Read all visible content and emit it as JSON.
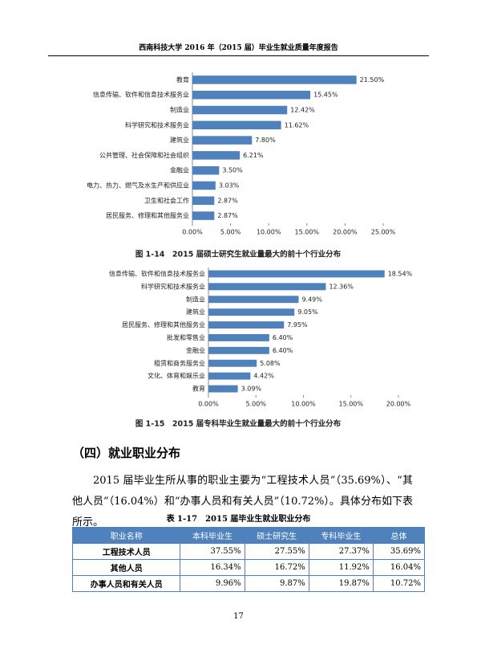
{
  "header": {
    "title": "西南科技大学 2016 年（2015 届）毕业生就业质量年度报告"
  },
  "chart_data": [
    {
      "type": "bar",
      "orientation": "horizontal",
      "title": "图 1-14　2015 届硕士研究生就业量最大的前十个行业分布",
      "categories": [
        "教育",
        "信息传输、软件和信息技术服务业",
        "制造业",
        "科学研究和技术服务业",
        "建筑业",
        "公共管理、社会保障和社会组织",
        "金融业",
        "电力、热力、燃气及水生产和供应业",
        "卫生和社会工作",
        "居民服务、修理和其他服务业"
      ],
      "values": [
        21.5,
        15.45,
        12.42,
        11.62,
        7.8,
        6.21,
        3.5,
        3.03,
        2.87,
        2.87
      ],
      "value_labels": [
        "21.50%",
        "15.45%",
        "12.42%",
        "11.62%",
        "7.80%",
        "6.21%",
        "3.50%",
        "3.03%",
        "2.87%",
        "2.87%"
      ],
      "color": "#4f81bd",
      "xlim": [
        0,
        25
      ],
      "xticks": [
        {
          "value": 0,
          "label": "0.00%"
        },
        {
          "value": 5,
          "label": "5.00%"
        },
        {
          "value": 10,
          "label": "10.00%"
        },
        {
          "value": 15,
          "label": "15.00%"
        },
        {
          "value": 20,
          "label": "20.00%"
        },
        {
          "value": 25,
          "label": "25.00%"
        }
      ]
    },
    {
      "type": "bar",
      "orientation": "horizontal",
      "title": "图 1-15　2015 届专科毕业生就业量最大的前十个行业分布",
      "categories": [
        "信息传输、软件和信息技术服务业",
        "科学研究和技术服务业",
        "制造业",
        "建筑业",
        "居民服务、修理和其他服务业",
        "批发和零售业",
        "金融业",
        "租赁和商务服务业",
        "文化、体育和娱乐业",
        "教育"
      ],
      "values": [
        18.54,
        12.36,
        9.49,
        9.05,
        7.95,
        6.4,
        6.4,
        5.08,
        4.42,
        3.09
      ],
      "value_labels": [
        "18.54%",
        "12.36%",
        "9.49%",
        "9.05%",
        "7.95%",
        "6.40%",
        "6.40%",
        "5.08%",
        "4.42%",
        "3.09%"
      ],
      "color": "#4f81bd",
      "xlim": [
        0,
        20
      ],
      "xticks": [
        {
          "value": 0,
          "label": "0.00%"
        },
        {
          "value": 5,
          "label": "5.00%"
        },
        {
          "value": 10,
          "label": "10.00%"
        },
        {
          "value": 15,
          "label": "15.00%"
        },
        {
          "value": 20,
          "label": "20.00%"
        }
      ]
    }
  ],
  "section": {
    "heading": "（四）就业职业分布",
    "paragraph": "2015 届毕业生所从事的职业主要为“工程技术人员”（35.69%）、“其他人员”（16.04%）和“办事人员和有关人员”（10.72%）。具体分布如下表所示。"
  },
  "table": {
    "caption": "表 1-17　2015 届毕业生就业职业分布",
    "header": [
      "职业名称",
      "本科毕业生",
      "硕士研究生",
      "专科毕业生",
      "总体"
    ],
    "rows": [
      [
        "工程技术人员",
        "37.55%",
        "27.55%",
        "27.37%",
        "35.69%"
      ],
      [
        "其他人员",
        "16.34%",
        "16.72%",
        "11.92%",
        "16.04%"
      ],
      [
        "办事人员和有关人员",
        "9.96%",
        "9.87%",
        "19.87%",
        "10.72%"
      ]
    ]
  },
  "footer": {
    "page": "17"
  }
}
